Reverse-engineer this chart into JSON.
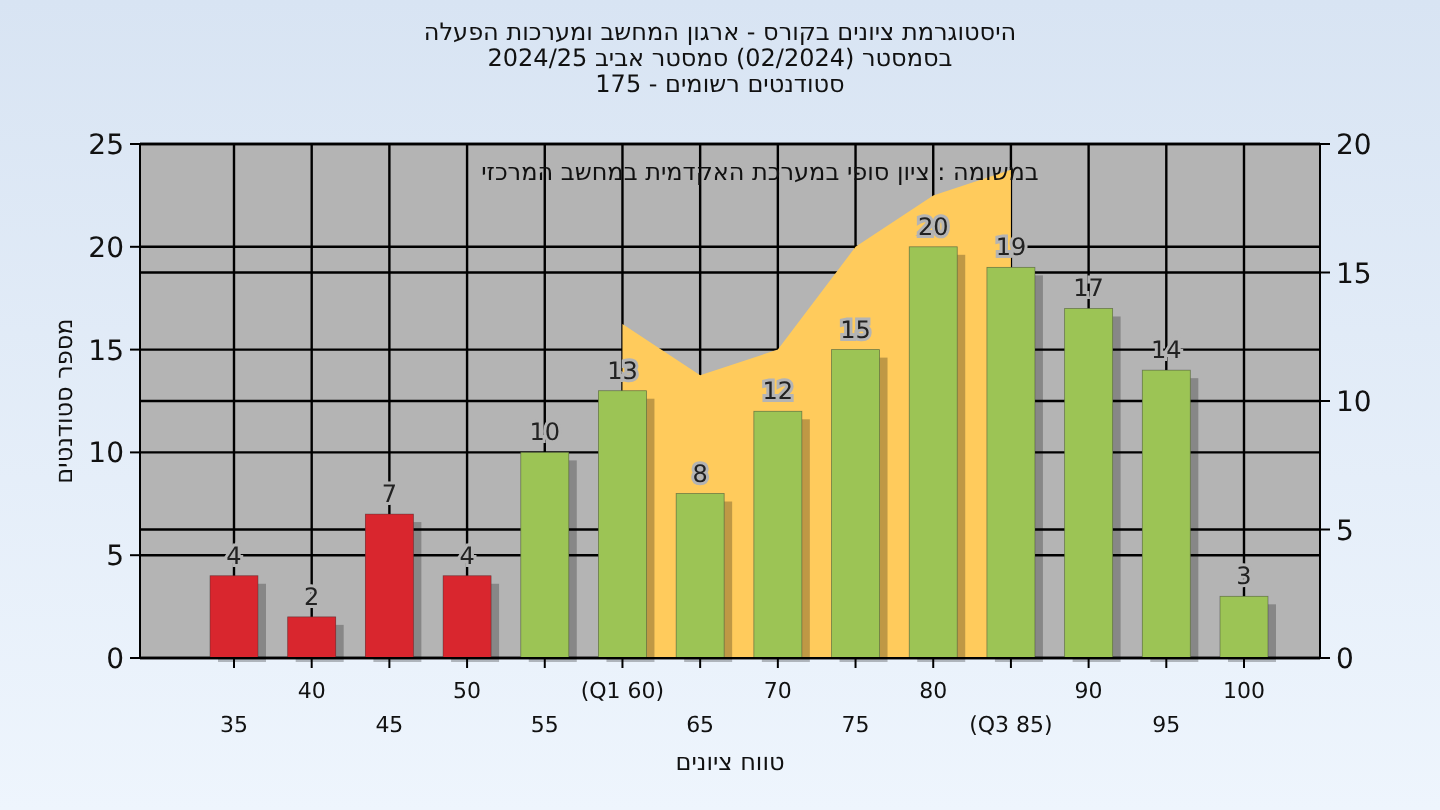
{
  "chart_data": {
    "type": "bar",
    "title": "היסטוגרמת ציונים בקורס - ארגון המחשב ומערכות הפעלה",
    "subtitle": "בסמסטר  (02/2024)  סמסטר אביב 2024/25\nסטודנטים רשומים - 175",
    "xlabel": "טווח ציונים",
    "ylabel": "מספר סטודנטים",
    "annotations": [
      "במשומה : ציון סופי במערכת האקדמית במחשב המרכזי"
    ],
    "categories": [
      "35",
      "40",
      "45",
      "50",
      "55",
      "(Q1 60)",
      "65",
      "70",
      "75",
      "80",
      "(Q3 85)",
      "90",
      "95",
      "100"
    ],
    "series": [
      {
        "type": "area",
        "axis": "y2",
        "color": "#ffcb5c",
        "values": [
          null,
          null,
          null,
          null,
          null,
          13,
          11,
          12,
          16,
          18,
          19,
          null,
          null,
          null
        ]
      },
      {
        "colors": [
          "#d9262e",
          "#d9262e",
          "#d9262e",
          "#d9262e",
          "#9cc455",
          "#9cc455",
          "#9cc455",
          "#9cc455",
          "#9cc455",
          "#9cc455",
          "#9cc455",
          "#9cc455",
          "#9cc455",
          "#9cc455"
        ],
        "values": [
          4,
          2,
          7,
          4,
          10,
          13,
          8,
          12,
          15,
          20,
          19,
          17,
          14,
          3
        ],
        "value_labels": [
          "4",
          "2",
          "7",
          "4",
          "10",
          "13",
          "8",
          "12",
          "15",
          "20",
          "19",
          "17",
          "14",
          "3"
        ]
      }
    ],
    "ylim": [
      0,
      25
    ],
    "yticks": [
      0,
      5,
      10,
      15,
      20,
      25
    ],
    "y2lim": [
      0,
      20
    ],
    "y2ticks": [
      0,
      5,
      10,
      15,
      20
    ],
    "grid": true
  }
}
